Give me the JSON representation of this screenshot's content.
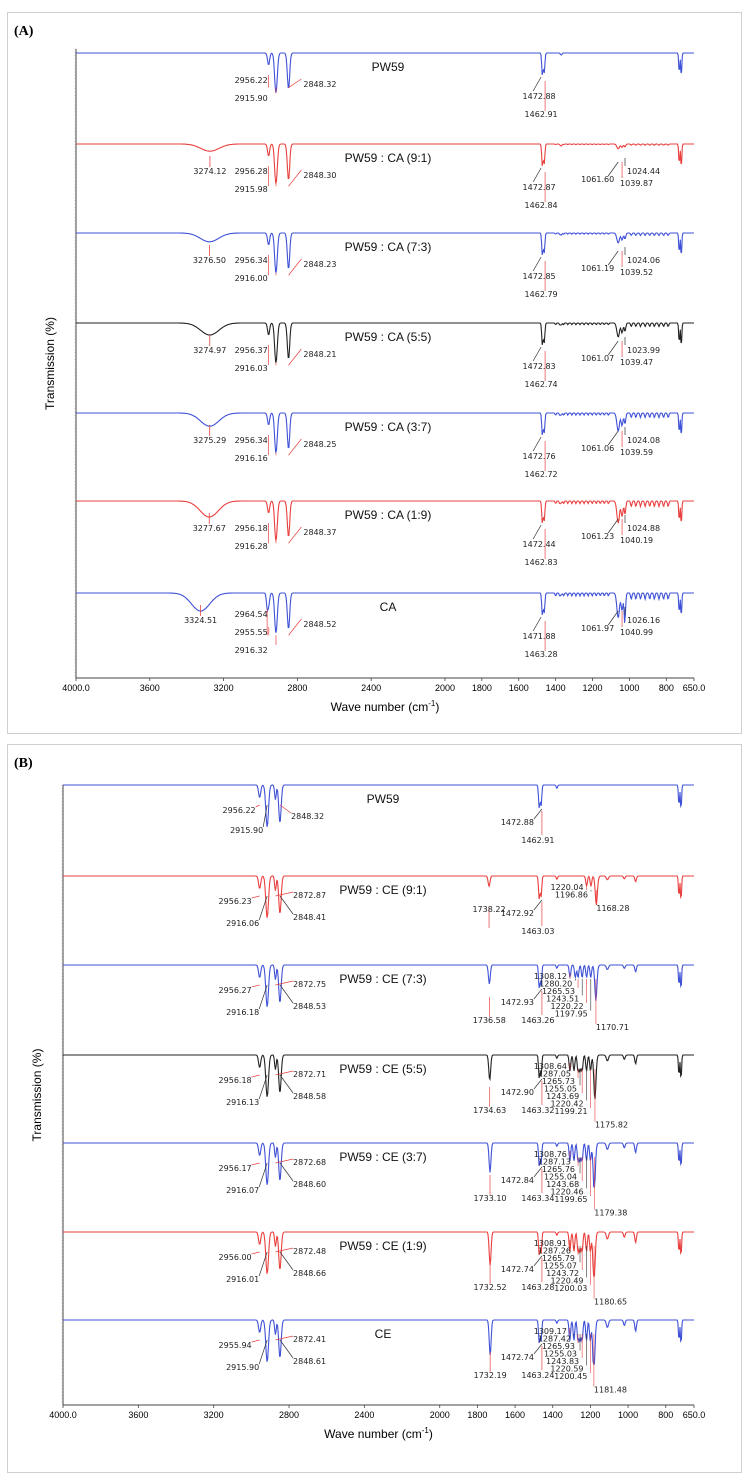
{
  "chart_data": [
    {
      "type": "line",
      "panel_label": "(A)",
      "xlabel": "Wave number (cm",
      "xlabel_sup": "-1",
      "xlabel_end": ")",
      "ylabel": "Transmission (%)",
      "xlim": [
        4000,
        650
      ],
      "xticks": [
        "4000.0",
        "3600",
        "3200",
        "2800",
        "2400",
        "2000",
        "1800",
        "1600",
        "1400",
        "1200",
        "1000",
        "800",
        "650.0"
      ],
      "xtick_values": [
        4000,
        3600,
        3200,
        2800,
        2400,
        2000,
        1800,
        1600,
        1400,
        1200,
        1000,
        800,
        650
      ],
      "series": [
        {
          "name": "PW59",
          "color": "#3f51d6",
          "oh": null,
          "ch": [
            "2956.22",
            "2915.90",
            "2848.32"
          ],
          "mid": [
            "1472.88",
            "1462.91"
          ],
          "co": [],
          "cluster": []
        },
        {
          "name": "PW59 : CA (9:1)",
          "color": "#e8403e",
          "oh": "3274.12",
          "ch": [
            "2956.28",
            "2915.98",
            "2848.30"
          ],
          "mid": [
            "1472.87",
            "1462.84"
          ],
          "co": [
            "1061.60",
            "1039.87",
            "1024.44"
          ],
          "cluster": []
        },
        {
          "name": "PW59 : CA (7:3)",
          "color": "#3f51d6",
          "oh": "3276.50",
          "ch": [
            "2956.34",
            "2916.00",
            "2848.23"
          ],
          "mid": [
            "1472.85",
            "1462.79"
          ],
          "co": [
            "1061.19",
            "1039.52",
            "1024.06"
          ],
          "cluster": []
        },
        {
          "name": "PW59 : CA (5:5)",
          "color": "#222222",
          "oh": "3274.97",
          "ch": [
            "2956.37",
            "2916.03",
            "2848.21"
          ],
          "mid": [
            "1472.83",
            "1462.74"
          ],
          "co": [
            "1061.07",
            "1039.47",
            "1023.99"
          ],
          "cluster": []
        },
        {
          "name": "PW59 : CA (3:7)",
          "color": "#3f51d6",
          "oh": "3275.29",
          "ch": [
            "2956.34",
            "2916.16",
            "2848.25"
          ],
          "mid": [
            "1472.76",
            "1462.72"
          ],
          "co": [
            "1061.06",
            "1039.59",
            "1024.08"
          ],
          "cluster": []
        },
        {
          "name": "PW59 : CA (1:9)",
          "color": "#e8403e",
          "oh": "3277.67",
          "ch": [
            "2956.18",
            "2916.28",
            "2848.37"
          ],
          "mid": [
            "1472.44",
            "1462.83"
          ],
          "co": [
            "1061.23",
            "1040.19",
            "1024.88"
          ],
          "cluster": []
        },
        {
          "name": "CA",
          "color": "#3f51d6",
          "oh": "3324.51",
          "ch": [
            "2964.54",
            "2955.55",
            "2916.32",
            "2848.52"
          ],
          "mid": [
            "1471.88",
            "1463.28"
          ],
          "co": [
            "1061.97",
            "1040.99",
            "1026.16"
          ],
          "cluster": []
        }
      ]
    },
    {
      "type": "line",
      "panel_label": "(B)",
      "xlabel": "Wave number (cm",
      "xlabel_sup": "-1",
      "xlabel_end": ")",
      "ylabel": "Transmission (%)",
      "xlim": [
        4000,
        650
      ],
      "xticks": [
        "4000.0",
        "3600",
        "3200",
        "2800",
        "2400",
        "2000",
        "1800",
        "1600",
        "1400",
        "1200",
        "1000",
        "800",
        "650.0"
      ],
      "xtick_values": [
        4000,
        3600,
        3200,
        2800,
        2400,
        2000,
        1800,
        1600,
        1400,
        1200,
        1000,
        800,
        650
      ],
      "series": [
        {
          "name": "PW59",
          "color": "#3f51d6",
          "ch": [
            "2956.22",
            "2915.90",
            "2848.32"
          ],
          "ce": [],
          "mid": [
            "1472.88",
            "1462.91"
          ],
          "c_o": null,
          "cluster": []
        },
        {
          "name": "PW59 : CE (9:1)",
          "color": "#e8403e",
          "ch": [
            "2956.23",
            "2916.06",
            "2872.87",
            "2848.41"
          ],
          "ce": [],
          "c_o": "1738.22",
          "mid": [
            "1472.92",
            "1463.03"
          ],
          "cluster": [
            "1220.04",
            "1196.86",
            "1168.28"
          ]
        },
        {
          "name": "PW59 : CE (7:3)",
          "color": "#3f51d6",
          "ch": [
            "2956.27",
            "2916.18",
            "2872.75",
            "2848.53"
          ],
          "c_o": "1736.58",
          "mid": [
            "1472.93",
            "1463.26"
          ],
          "cluster": [
            "1308.12",
            "1280.20",
            "1265.53",
            "1243.51",
            "1220.22",
            "1197.95",
            "1170.71"
          ]
        },
        {
          "name": "PW59 : CE (5:5)",
          "color": "#222222",
          "ch": [
            "2956.18",
            "2916.13",
            "2872.71",
            "2848.58"
          ],
          "c_o": "1734.63",
          "mid": [
            "1472.90",
            "1463.32"
          ],
          "cluster": [
            "1308.64",
            "1287.05",
            "1265.73",
            "1255.05",
            "1243.69",
            "1220.42",
            "1199.21",
            "1175.82"
          ]
        },
        {
          "name": "PW59 : CE (3:7)",
          "color": "#3f51d6",
          "ch": [
            "2956.17",
            "2916.07",
            "2872.68",
            "2848.60"
          ],
          "c_o": "1733.10",
          "mid": [
            "1472.84",
            "1463.34"
          ],
          "cluster": [
            "1308.76",
            "1287.13",
            "1265.76",
            "1255.04",
            "1243.68",
            "1220.46",
            "1199.65",
            "1179.38"
          ]
        },
        {
          "name": "PW59 : CE (1:9)",
          "color": "#e8403e",
          "ch": [
            "2956.00",
            "2916.01",
            "2872.48",
            "2848.66"
          ],
          "c_o": "1732.52",
          "mid": [
            "1472.74",
            "1463.28"
          ],
          "cluster": [
            "1308.91",
            "1287.26",
            "1265.79",
            "1255.07",
            "1243.72",
            "1220.49",
            "1200.03",
            "1180.65"
          ]
        },
        {
          "name": "CE",
          "color": "#3f51d6",
          "ch": [
            "2955.94",
            "2915.90",
            "2872.41",
            "2848.61"
          ],
          "c_o": "1732.19",
          "mid": [
            "1472.74",
            "1463.24"
          ],
          "cluster": [
            "1309.17",
            "1287.42",
            "1265.93",
            "1255.03",
            "1243.83",
            "1220.59",
            "1200.45",
            "1181.48"
          ]
        }
      ]
    }
  ]
}
